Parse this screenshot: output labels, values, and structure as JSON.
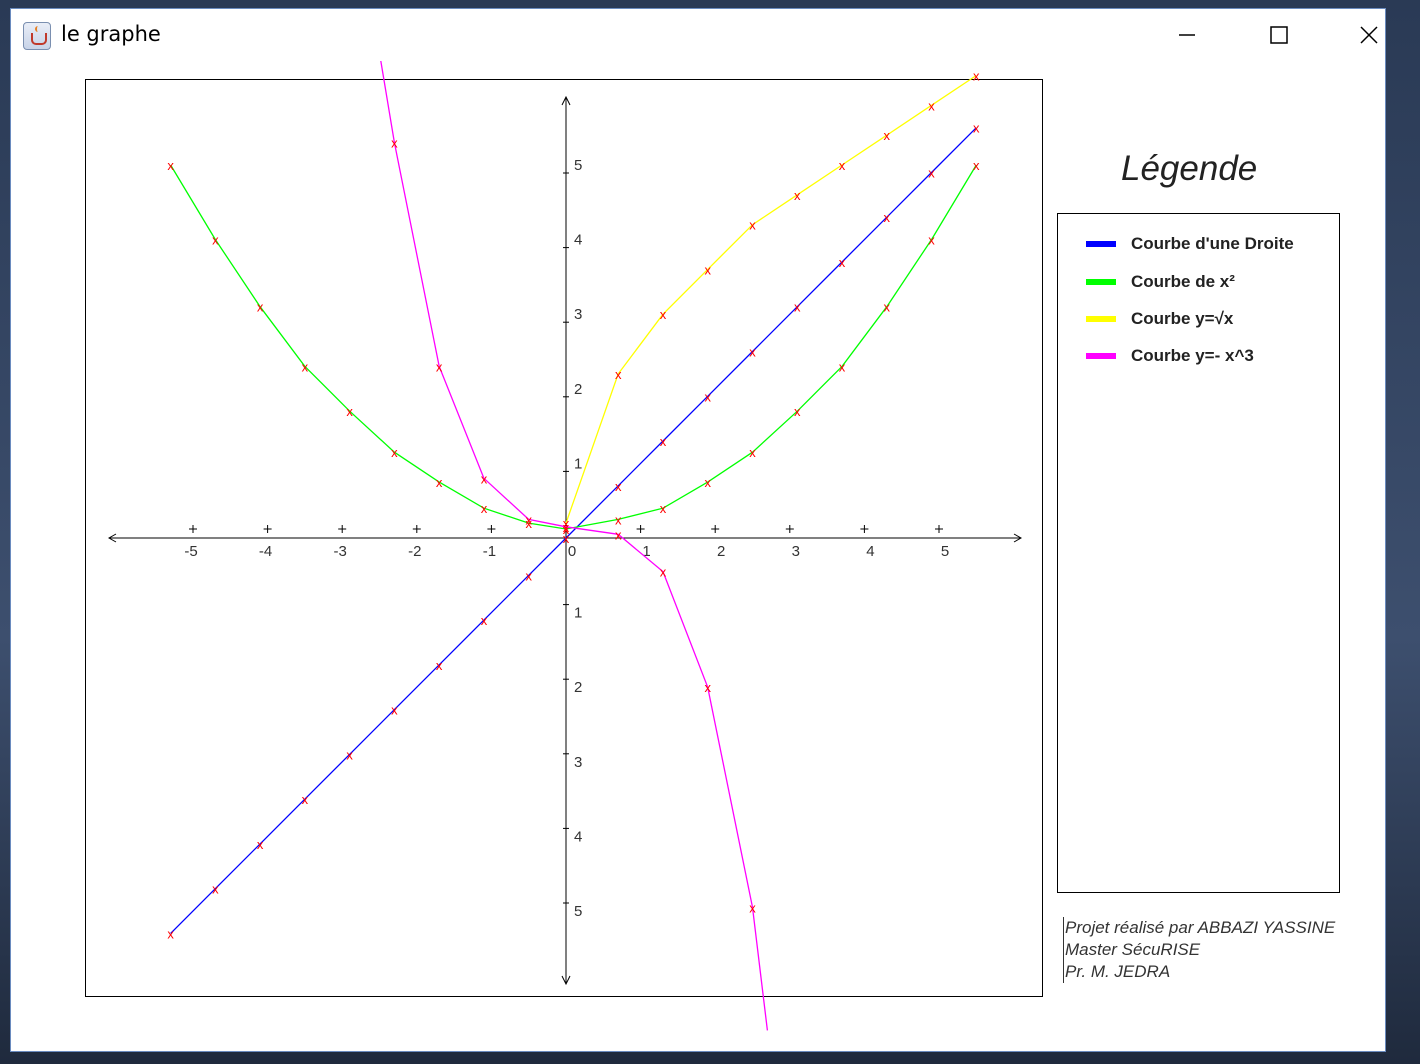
{
  "window": {
    "title": "le graphe",
    "controls": {
      "minimize": "minimize-icon",
      "maximize": "maximize-icon",
      "close": "close-icon"
    }
  },
  "legend": {
    "title": "Légende",
    "items": [
      {
        "label": "Courbe d'une Droite",
        "color": "#0000ff"
      },
      {
        "label": "Courbe de x²",
        "color": "#00ff00"
      },
      {
        "label": "Courbe y=√x",
        "color": "#ffff00"
      },
      {
        "label": "Courbe y=- x^3",
        "color": "#ff00ff"
      }
    ]
  },
  "credits": {
    "line1": "Projet réalisé par ABBAZI YASSINE",
    "line2": "Master SécuRISE",
    "line3": "Pr. M. JEDRA"
  },
  "chart_data": {
    "type": "line",
    "x_ticks": [
      "-5",
      "-4",
      "-3",
      "-2",
      "-1",
      "0",
      "1",
      "2",
      "3",
      "4",
      "5"
    ],
    "y_ticks_positive": [
      "1",
      "2",
      "3",
      "4",
      "5"
    ],
    "y_ticks_negative": [
      "1",
      "2",
      "3",
      "4",
      "5"
    ],
    "xlim": [
      -6,
      6
    ],
    "ylim": [
      -6,
      6
    ],
    "marker": "x",
    "marker_color": "#ff0000",
    "series": [
      {
        "name": "Courbe d'une Droite",
        "color": "#0000ff",
        "x": [
          -5.3,
          -4.7,
          -4.1,
          -3.5,
          -2.9,
          -2.3,
          -1.7,
          -1.1,
          -0.5,
          0,
          0.7,
          1.3,
          1.9,
          2.5,
          3.1,
          3.7,
          4.3,
          4.9,
          5.5
        ],
        "y": [
          -5.3,
          -4.7,
          -4.1,
          -3.5,
          -2.9,
          -2.3,
          -1.7,
          -1.1,
          -0.5,
          0,
          0.7,
          1.3,
          1.9,
          2.5,
          3.1,
          3.7,
          4.3,
          4.9,
          5.5
        ]
      },
      {
        "name": "Courbe de x²",
        "color": "#00ff00",
        "x": [
          -5.3,
          -4.7,
          -4.1,
          -3.5,
          -2.9,
          -2.3,
          -1.7,
          -1.1,
          -0.5,
          0,
          0.7,
          1.3,
          1.9,
          2.5,
          3.1,
          3.7,
          4.3,
          4.9,
          5.5
        ],
        "y": [
          5.0,
          4.0,
          3.1,
          2.3,
          1.7,
          1.15,
          0.75,
          0.4,
          0.2,
          0.12,
          0.25,
          0.4,
          0.75,
          1.15,
          1.7,
          2.3,
          3.1,
          4.0,
          5.0
        ]
      },
      {
        "name": "Courbe y=√x",
        "color": "#ffff00",
        "x": [
          0,
          0.7,
          1.3,
          1.9,
          2.5,
          3.1,
          3.7,
          4.3,
          4.9,
          5.5
        ],
        "y": [
          0.2,
          2.2,
          3.0,
          3.6,
          4.2,
          4.6,
          5.0,
          5.4,
          5.8,
          6.2
        ]
      },
      {
        "name": "Courbe y=- x^3",
        "color": "#ff00ff",
        "x": [
          -2.5,
          -2.3,
          -1.7,
          -1.1,
          -0.5,
          0,
          0.7,
          1.3,
          1.9,
          2.5,
          2.7
        ],
        "y": [
          6.5,
          5.3,
          2.3,
          0.8,
          0.25,
          0.15,
          0.05,
          -0.45,
          -2.0,
          -4.95,
          -6.6
        ],
        "markers": [
          false,
          true,
          true,
          true,
          true,
          true,
          true,
          true,
          true,
          true,
          false
        ]
      }
    ]
  }
}
